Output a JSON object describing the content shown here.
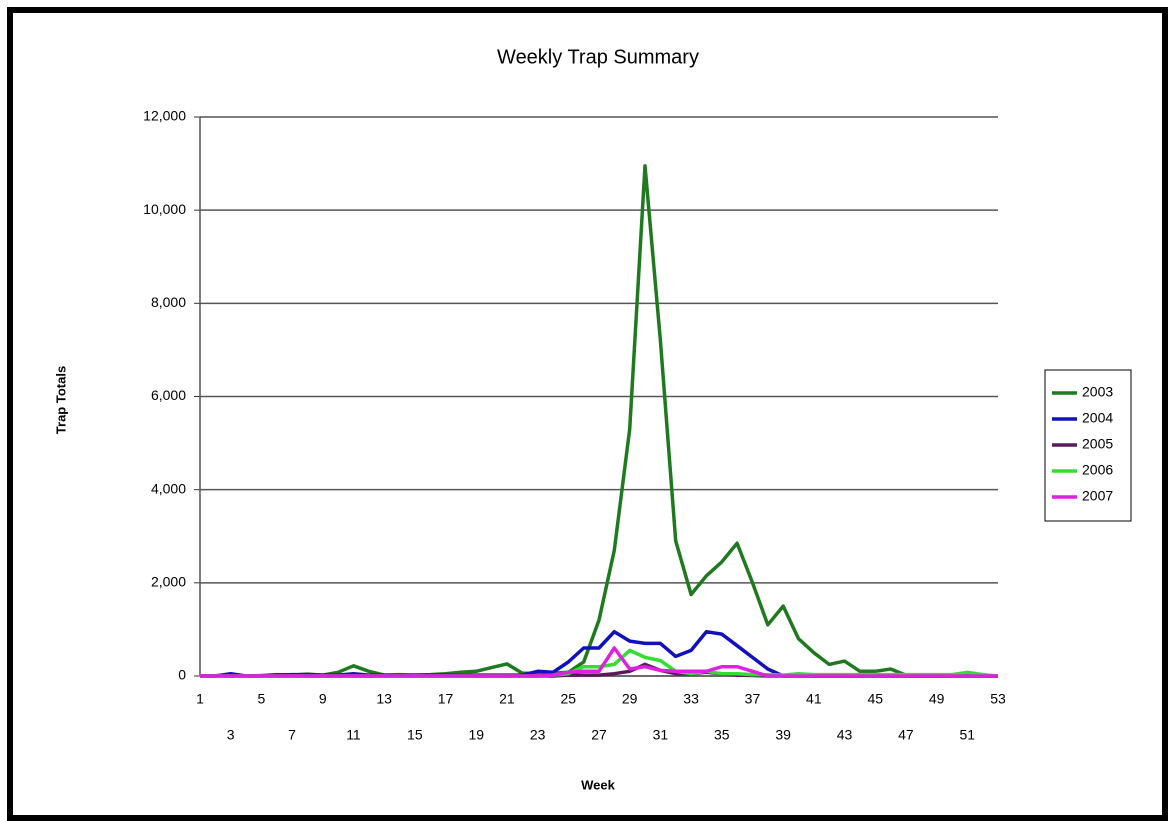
{
  "chart_data": {
    "type": "line",
    "title": "Weekly Trap Summary",
    "x_label": "Week",
    "y_label": "Trap Totals",
    "categories": [
      1,
      null,
      3,
      null,
      5,
      null,
      7,
      null,
      9,
      null,
      11,
      null,
      13,
      null,
      15,
      null,
      17,
      null,
      19,
      null,
      21,
      null,
      23,
      null,
      25,
      null,
      27,
      null,
      29,
      null,
      31,
      null,
      33,
      null,
      35,
      null,
      37,
      null,
      39,
      null,
      41,
      null,
      43,
      null,
      45,
      null,
      47,
      null,
      49,
      null,
      51,
      null,
      53
    ],
    "ylim": [
      0,
      12000
    ],
    "yticks": [
      0,
      {
        "value": 2000,
        "label": "2,000"
      },
      {
        "value": 4000,
        "label": "4,000"
      },
      {
        "value": 6000,
        "label": "6,000"
      },
      {
        "value": 8000,
        "label": "8,000"
      },
      {
        "value": 10000,
        "label": "10,000"
      },
      {
        "value": 12000,
        "label": "12,000"
      }
    ],
    "grid": true,
    "legend": "right",
    "series": [
      {
        "name": "2003",
        "color": "#1f7a1f",
        "values": [
          0,
          0,
          20,
          0,
          10,
          30,
          20,
          40,
          20,
          80,
          220,
          100,
          20,
          30,
          20,
          30,
          50,
          80,
          100,
          180,
          260,
          60,
          60,
          60,
          80,
          300,
          1200,
          2700,
          5300,
          10950,
          7200,
          2900,
          1750,
          2150,
          2450,
          2850,
          2000,
          1100,
          1500,
          800,
          500,
          250,
          320,
          100,
          100,
          150,
          20,
          10,
          10,
          10,
          10,
          10,
          0
        ]
      },
      {
        "name": "2004",
        "color": "#1010c0",
        "values": [
          0,
          0,
          50,
          0,
          0,
          20,
          30,
          30,
          20,
          20,
          50,
          20,
          20,
          10,
          20,
          20,
          20,
          10,
          20,
          20,
          20,
          20,
          100,
          80,
          300,
          600,
          600,
          950,
          750,
          700,
          700,
          420,
          550,
          950,
          900,
          650,
          400,
          150,
          0,
          0,
          0,
          0,
          0,
          0,
          0,
          0,
          0,
          0,
          0,
          0,
          0,
          0,
          0
        ]
      },
      {
        "name": "2005",
        "color": "#5a1a5a",
        "values": [
          0,
          0,
          0,
          0,
          0,
          0,
          0,
          0,
          0,
          0,
          0,
          0,
          0,
          0,
          0,
          0,
          0,
          0,
          0,
          0,
          0,
          0,
          0,
          0,
          20,
          20,
          20,
          50,
          100,
          250,
          120,
          50,
          50,
          80,
          50,
          20,
          10,
          0,
          0,
          0,
          0,
          0,
          0,
          0,
          0,
          0,
          0,
          0,
          0,
          0,
          0,
          0,
          0
        ]
      },
      {
        "name": "2006",
        "color": "#33dd33",
        "values": [
          0,
          0,
          0,
          0,
          0,
          0,
          0,
          0,
          0,
          0,
          0,
          0,
          0,
          0,
          0,
          0,
          0,
          0,
          0,
          0,
          0,
          0,
          0,
          20,
          50,
          200,
          200,
          250,
          550,
          400,
          330,
          100,
          50,
          100,
          50,
          50,
          30,
          30,
          20,
          50,
          30,
          30,
          30,
          30,
          30,
          30,
          30,
          30,
          30,
          30,
          80,
          30,
          0
        ]
      },
      {
        "name": "2007",
        "color": "#e020e0",
        "values": [
          0,
          0,
          0,
          0,
          0,
          0,
          0,
          0,
          0,
          0,
          0,
          0,
          0,
          0,
          0,
          0,
          0,
          0,
          0,
          0,
          0,
          0,
          0,
          20,
          80,
          100,
          100,
          600,
          150,
          200,
          120,
          100,
          100,
          100,
          200,
          200,
          100,
          0,
          0,
          0,
          0,
          0,
          0,
          0,
          0,
          0,
          0,
          0,
          0,
          0,
          0,
          0,
          0
        ]
      }
    ]
  }
}
